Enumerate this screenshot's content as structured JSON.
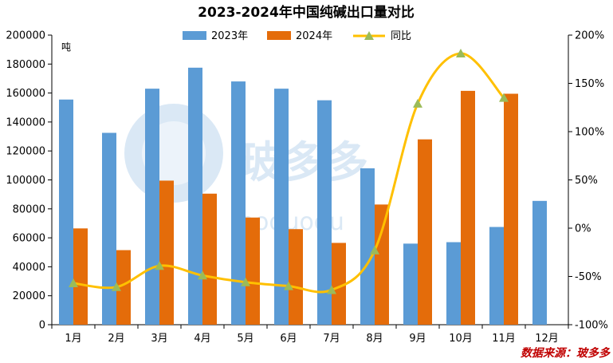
{
  "chart_data": {
    "type": "bar+line",
    "title": "2023-2024年中国纯碱出口量对比",
    "categories": [
      "1月",
      "2月",
      "3月",
      "4月",
      "5月",
      "6月",
      "7月",
      "8月",
      "9月",
      "10月",
      "11月",
      "12月"
    ],
    "series": [
      {
        "name": "2023年",
        "type": "bar",
        "color": "#5b9bd5",
        "axis": "left",
        "values": [
          155500,
          132500,
          163000,
          177500,
          168000,
          163000,
          155000,
          108000,
          56000,
          57000,
          67500,
          85500
        ]
      },
      {
        "name": "2024年",
        "type": "bar",
        "color": "#e46c0a",
        "axis": "left",
        "values": [
          66500,
          51500,
          99500,
          90500,
          74000,
          66000,
          56500,
          83000,
          128000,
          161500,
          159500,
          null
        ]
      },
      {
        "name": "同比",
        "type": "line",
        "color": "#ffc000",
        "marker_color": "#9bbb59",
        "axis": "right",
        "unit": "%",
        "values": [
          -57,
          -61,
          -39,
          -49,
          -56,
          -60,
          -64,
          -23,
          129,
          181,
          135,
          null
        ]
      }
    ],
    "y_left": {
      "label": "吨",
      "min": 0,
      "max": 200000,
      "step": 20000,
      "ticks": [
        "0",
        "20000",
        "40000",
        "60000",
        "80000",
        "100000",
        "120000",
        "140000",
        "160000",
        "180000",
        "200000"
      ]
    },
    "y_right": {
      "min": -100,
      "max": 200,
      "step": 50,
      "ticks": [
        "-100%",
        "-50%",
        "0%",
        "50%",
        "100%",
        "150%",
        "200%"
      ]
    },
    "legend_position": "top",
    "grid": false,
    "source": "数据来源：玻多多",
    "watermark": "玻多多 boduodu"
  }
}
